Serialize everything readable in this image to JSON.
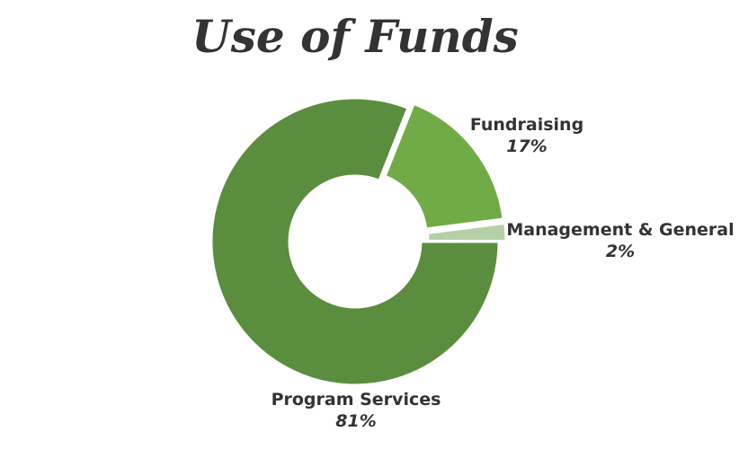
{
  "chart_data": {
    "type": "pie",
    "donut": true,
    "title": "Use of Funds",
    "slices": [
      {
        "label": "Program Services",
        "value": 81,
        "value_label": "81%",
        "color": "#5a8e3e"
      },
      {
        "label": "Fundraising",
        "value": 17,
        "value_label": "17%",
        "color": "#71ab47"
      },
      {
        "label": "Management & General",
        "value": 2,
        "value_label": "2%",
        "color": "#b5d0a6"
      }
    ],
    "exploded": [
      "Fundraising",
      "Management & General"
    ],
    "legend": "none"
  },
  "colors": {
    "title": "#333333",
    "label": "#333333",
    "slice_border": "#ffffff"
  }
}
